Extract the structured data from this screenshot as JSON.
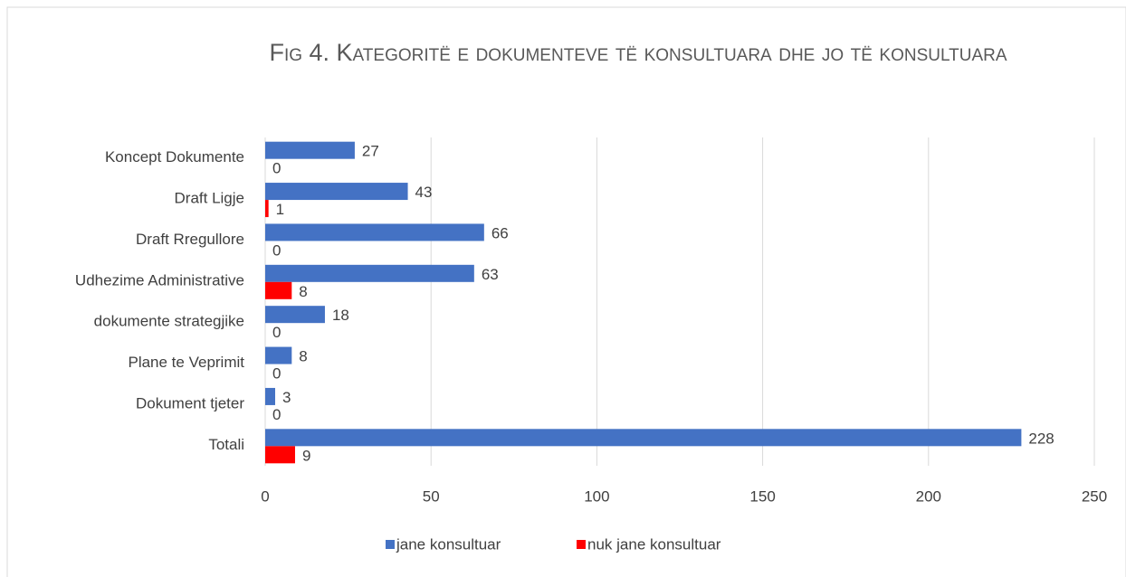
{
  "chart_data": {
    "type": "hbar",
    "title": "Fig 4. Kategoritë  e dokumenteve të konsultuara dhe jo të konsultuara",
    "categories": [
      "Koncept Dokumente",
      "Draft Ligje",
      "Draft Rregullore",
      "Udhezime Administrative",
      "dokumente strategjike",
      "Plane te Veprimit",
      "Dokument tjeter",
      "Totali"
    ],
    "series": [
      {
        "name": "jane konsultuar",
        "color": "#4472c4",
        "values": [
          27,
          43,
          66,
          63,
          18,
          8,
          3,
          228
        ]
      },
      {
        "name": "nuk jane konsultuar",
        "color": "#ff0000",
        "values": [
          0,
          1,
          0,
          8,
          0,
          0,
          0,
          9
        ]
      }
    ],
    "xlim": [
      0,
      250
    ],
    "xticks": [
      0,
      50,
      100,
      150,
      200,
      250
    ],
    "grid": true,
    "legend": "bottom"
  }
}
